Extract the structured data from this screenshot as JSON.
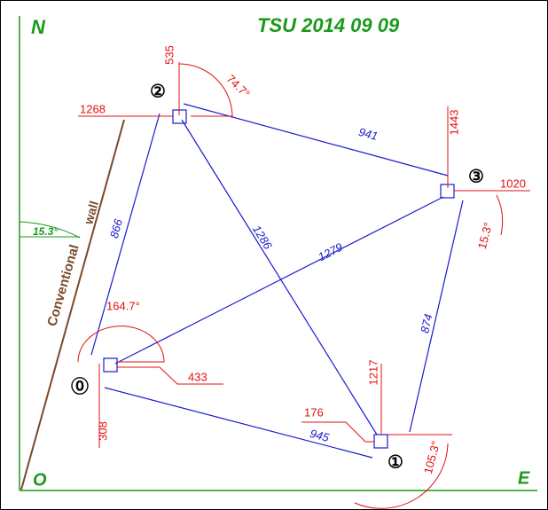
{
  "header": {
    "title": "TSU  2014 09 09"
  },
  "axes": {
    "north": "N",
    "origin": "O",
    "east": "E"
  },
  "wall": {
    "word1": "Conventional",
    "word2": "wall",
    "angle": "15.3°"
  },
  "nodes": [
    {
      "label": "⓪"
    },
    {
      "label": "①"
    },
    {
      "label": "②"
    },
    {
      "label": "③"
    }
  ],
  "distances": {
    "d02": "866",
    "d01": "945",
    "d23": "941",
    "d31": "874",
    "d21": "1286",
    "d03": "1279"
  },
  "offsets": {
    "n2_top": "535",
    "n2_left": "1268",
    "n3_top": "1443",
    "n3_right": "1020",
    "n0_right": "433",
    "n0_bottom": "308",
    "n1_top": "1217",
    "n1_left": "176"
  },
  "angles": {
    "a2": "74.7°",
    "a3": "15.3°",
    "a0": "164.7°",
    "a1": "105.3°"
  }
}
